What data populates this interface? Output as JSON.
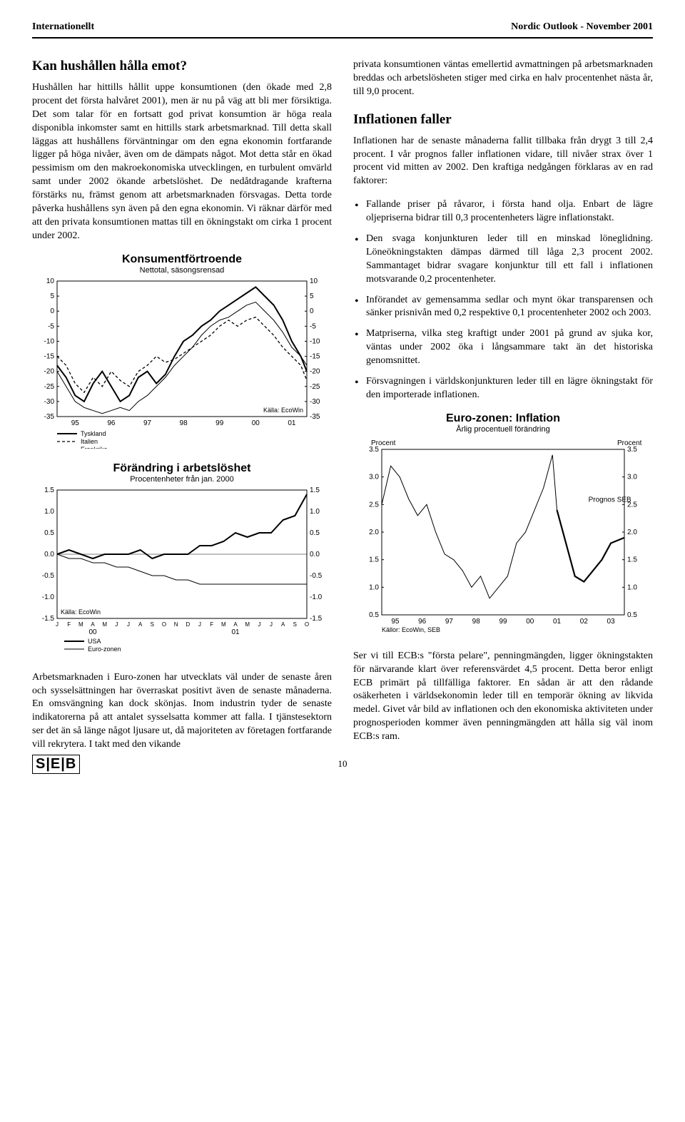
{
  "header": {
    "left": "Internationellt",
    "right": "Nordic Outlook - November 2001"
  },
  "left_col": {
    "title": "Kan hushållen hålla emot?",
    "para1": "Hushållen har hittills hållit uppe konsumtionen (den ökade med 2,8 procent det första halvåret 2001), men är nu på väg att bli mer försiktiga. Det som talar för en fortsatt god privat konsumtion är höga reala disponibla inkomster samt en hittills stark arbetsmarknad. Till detta skall läggas att hushållens förväntningar om den egna ekonomin fortfarande ligger på höga nivåer, även om de dämpats något. Mot detta står en ökad pessimism om den makroekonomiska utvecklingen, en turbulent omvärld samt under 2002 ökande arbetslöshet. De nedåtdragande krafterna förstärks nu, främst genom att arbetsmarknaden försvagas. Detta torde påverka hushållens syn även på den egna ekonomin. Vi räknar därför med att den privata konsumtionen mattas till en ökningstakt om cirka 1 procent under 2002.",
    "chart1": {
      "title": "Konsumentförtroende",
      "subtitle": "Nettotal, säsongsrensad",
      "ylim": [
        -35,
        10
      ],
      "yticks": [
        10,
        5,
        0,
        -5,
        -10,
        -15,
        -20,
        -25,
        -30,
        -35
      ],
      "xticks": [
        "95",
        "96",
        "97",
        "98",
        "99",
        "00",
        "01"
      ],
      "source": "Källa: EcoWin",
      "legend": [
        "Tyskland",
        "Italien",
        "Frankrike"
      ],
      "series": {
        "tyskland": {
          "style": "solid-thick",
          "color": "#000000",
          "points": [
            [
              0,
              -18
            ],
            [
              3,
              -22
            ],
            [
              6,
              -28
            ],
            [
              9,
              -30
            ],
            [
              12,
              -24
            ],
            [
              15,
              -20
            ],
            [
              18,
              -25
            ],
            [
              21,
              -30
            ],
            [
              24,
              -28
            ],
            [
              27,
              -22
            ],
            [
              30,
              -20
            ],
            [
              33,
              -24
            ],
            [
              36,
              -21
            ],
            [
              39,
              -15
            ],
            [
              42,
              -10
            ],
            [
              45,
              -8
            ],
            [
              48,
              -5
            ],
            [
              51,
              -3
            ],
            [
              54,
              0
            ],
            [
              57,
              2
            ],
            [
              60,
              4
            ],
            [
              63,
              6
            ],
            [
              66,
              8
            ],
            [
              69,
              5
            ],
            [
              72,
              2
            ],
            [
              75,
              -3
            ],
            [
              78,
              -10
            ],
            [
              81,
              -15
            ],
            [
              83,
              -20
            ]
          ]
        },
        "italien": {
          "style": "dashed",
          "color": "#000000",
          "points": [
            [
              0,
              -15
            ],
            [
              3,
              -18
            ],
            [
              6,
              -24
            ],
            [
              9,
              -27
            ],
            [
              12,
              -22
            ],
            [
              15,
              -25
            ],
            [
              18,
              -20
            ],
            [
              21,
              -23
            ],
            [
              24,
              -25
            ],
            [
              27,
              -20
            ],
            [
              30,
              -18
            ],
            [
              33,
              -15
            ],
            [
              36,
              -17
            ],
            [
              39,
              -16
            ],
            [
              42,
              -14
            ],
            [
              45,
              -12
            ],
            [
              48,
              -10
            ],
            [
              51,
              -8
            ],
            [
              54,
              -5
            ],
            [
              57,
              -3
            ],
            [
              60,
              -5
            ],
            [
              63,
              -3
            ],
            [
              66,
              -2
            ],
            [
              69,
              -5
            ],
            [
              72,
              -8
            ],
            [
              75,
              -12
            ],
            [
              78,
              -15
            ],
            [
              81,
              -18
            ],
            [
              83,
              -23
            ]
          ]
        },
        "frankrike": {
          "style": "solid-thin",
          "color": "#000000",
          "points": [
            [
              0,
              -20
            ],
            [
              3,
              -25
            ],
            [
              6,
              -30
            ],
            [
              9,
              -32
            ],
            [
              12,
              -33
            ],
            [
              15,
              -34
            ],
            [
              18,
              -33
            ],
            [
              21,
              -32
            ],
            [
              24,
              -33
            ],
            [
              27,
              -30
            ],
            [
              30,
              -28
            ],
            [
              33,
              -25
            ],
            [
              36,
              -22
            ],
            [
              39,
              -18
            ],
            [
              42,
              -15
            ],
            [
              45,
              -12
            ],
            [
              48,
              -8
            ],
            [
              51,
              -5
            ],
            [
              54,
              -3
            ],
            [
              57,
              -2
            ],
            [
              60,
              0
            ],
            [
              63,
              2
            ],
            [
              66,
              3
            ],
            [
              69,
              0
            ],
            [
              72,
              -3
            ],
            [
              75,
              -7
            ],
            [
              78,
              -12
            ],
            [
              81,
              -15
            ],
            [
              83,
              -18
            ]
          ]
        }
      }
    },
    "chart2": {
      "title": "Förändring i arbetslöshet",
      "subtitle": "Procentenheter från jan. 2000",
      "ylim": [
        -1.5,
        1.5
      ],
      "yticks": [
        1.5,
        1.0,
        0.5,
        0.0,
        -0.5,
        -1.0,
        -1.5
      ],
      "xticks_top": [
        "J",
        "F",
        "M",
        "A",
        "M",
        "J",
        "J",
        "A",
        "S",
        "O",
        "N",
        "D",
        "J",
        "F",
        "M",
        "A",
        "M",
        "J",
        "J",
        "A",
        "S",
        "O"
      ],
      "xyears": [
        "00",
        "01"
      ],
      "source": "Källa: EcoWin",
      "legend": [
        "USA",
        "Euro-zonen"
      ],
      "series": {
        "usa": {
          "style": "solid-thick",
          "color": "#000000",
          "points": [
            [
              0,
              0.0
            ],
            [
              1,
              0.1
            ],
            [
              2,
              0.0
            ],
            [
              3,
              -0.1
            ],
            [
              4,
              0.0
            ],
            [
              5,
              0.0
            ],
            [
              6,
              0.0
            ],
            [
              7,
              0.1
            ],
            [
              8,
              -0.1
            ],
            [
              9,
              0.0
            ],
            [
              10,
              0.0
            ],
            [
              11,
              0.0
            ],
            [
              12,
              0.2
            ],
            [
              13,
              0.2
            ],
            [
              14,
              0.3
            ],
            [
              15,
              0.5
            ],
            [
              16,
              0.4
            ],
            [
              17,
              0.5
            ],
            [
              18,
              0.5
            ],
            [
              19,
              0.8
            ],
            [
              20,
              0.9
            ],
            [
              21,
              1.4
            ]
          ]
        },
        "euro": {
          "style": "solid-thin",
          "color": "#000000",
          "points": [
            [
              0,
              0.0
            ],
            [
              1,
              -0.1
            ],
            [
              2,
              -0.1
            ],
            [
              3,
              -0.2
            ],
            [
              4,
              -0.2
            ],
            [
              5,
              -0.3
            ],
            [
              6,
              -0.3
            ],
            [
              7,
              -0.4
            ],
            [
              8,
              -0.5
            ],
            [
              9,
              -0.5
            ],
            [
              10,
              -0.6
            ],
            [
              11,
              -0.6
            ],
            [
              12,
              -0.7
            ],
            [
              13,
              -0.7
            ],
            [
              14,
              -0.7
            ],
            [
              15,
              -0.7
            ],
            [
              16,
              -0.7
            ],
            [
              17,
              -0.7
            ],
            [
              18,
              -0.7
            ],
            [
              19,
              -0.7
            ],
            [
              20,
              -0.7
            ],
            [
              21,
              -0.7
            ]
          ]
        }
      }
    },
    "closing": "Arbetsmarknaden i Euro-zonen har utvecklats väl under de senaste åren och sysselsättningen har överraskat positivt även de senaste månaderna. En omsvängning kan dock skönjas. Inom industrin tyder de senaste indikatorerna på att antalet sysselsatta kommer att falla. I tjänstesektorn ser det än så länge något ljusare ut, då majoriteten av företagen fortfarande vill rekrytera. I takt med den vikande"
  },
  "right_col": {
    "para_top": "privata konsumtionen väntas emellertid avmattningen på arbetsmarknaden breddas och arbetslösheten stiger med cirka en halv procentenhet nästa år, till 9,0 procent.",
    "subtitle": "Inflationen faller",
    "para2": "Inflationen har de senaste månaderna fallit tillbaka från drygt 3 till 2,4 procent. I vår prognos faller inflationen vidare, till nivåer strax över 1 procent vid mitten av 2002. Den kraftiga nedgången förklaras av en rad faktorer:",
    "bullets": [
      "Fallande priser på råvaror, i första hand olja. Enbart de lägre oljepriserna bidrar till 0,3 procentenheters lägre inflationstakt.",
      "Den svaga konjunkturen leder till en minskad löneglidning. Löneökningstakten dämpas därmed till låga 2,3 procent 2002. Sammantaget bidrar svagare konjunktur till ett fall i inflationen motsvarande 0,2 procentenheter.",
      "Införandet av gemensamma sedlar och mynt ökar transparensen och sänker prisnivån med 0,2 respektive 0,1 procentenheter 2002 och 2003.",
      "Matpriserna, vilka steg kraftigt under 2001 på grund av sjuka kor, väntas under 2002 öka i långsammare takt än det historiska genomsnittet.",
      "Försvagningen i världskonjunkturen leder till en lägre ökningstakt för den importerade inflationen."
    ],
    "chart3": {
      "title": "Euro-zonen: Inflation",
      "subtitle": "Årlig procentuell förändring",
      "ylabel_left": "Procent",
      "ylabel_right": "Procent",
      "ylim": [
        0.5,
        3.5
      ],
      "yticks": [
        3.5,
        3.0,
        2.5,
        2.0,
        1.5,
        1.0,
        0.5
      ],
      "xticks": [
        "95",
        "96",
        "97",
        "98",
        "99",
        "00",
        "01",
        "02",
        "03"
      ],
      "annotation": "Prognos SEB",
      "source": "Källor: EcoWin, SEB",
      "series": {
        "inflation": {
          "style": "solid-thin",
          "color": "#000000",
          "points": [
            [
              0,
              2.5
            ],
            [
              4,
              3.2
            ],
            [
              8,
              3.0
            ],
            [
              12,
              2.6
            ],
            [
              16,
              2.3
            ],
            [
              20,
              2.5
            ],
            [
              24,
              2.0
            ],
            [
              28,
              1.6
            ],
            [
              32,
              1.5
            ],
            [
              36,
              1.3
            ],
            [
              40,
              1.0
            ],
            [
              44,
              1.2
            ],
            [
              48,
              0.8
            ],
            [
              52,
              1.0
            ],
            [
              56,
              1.2
            ],
            [
              60,
              1.8
            ],
            [
              64,
              2.0
            ],
            [
              68,
              2.4
            ],
            [
              72,
              2.8
            ],
            [
              76,
              3.4
            ],
            [
              78,
              2.4
            ]
          ]
        },
        "prognos": {
          "style": "solid-thick",
          "color": "#000000",
          "points": [
            [
              78,
              2.4
            ],
            [
              82,
              1.8
            ],
            [
              86,
              1.2
            ],
            [
              90,
              1.1
            ],
            [
              94,
              1.3
            ],
            [
              98,
              1.5
            ],
            [
              102,
              1.8
            ],
            [
              108,
              1.9
            ]
          ]
        }
      }
    },
    "closing": "Ser vi till ECB:s \"första pelare\", penningmängden, ligger ökningstakten för närvarande klart över referensvärdet 4,5 procent. Detta beror enligt ECB primärt på tillfälliga faktorer. En sådan är att den rådande osäkerheten i världsekonomin leder till en temporär ökning av likvida medel. Givet vår bild av inflationen och den ekonomiska aktiviteten under prognosperioden kommer även penningmängden att hålla sig väl inom ECB:s ram."
  },
  "footer": {
    "logo": "S|E|B",
    "page": "10"
  }
}
